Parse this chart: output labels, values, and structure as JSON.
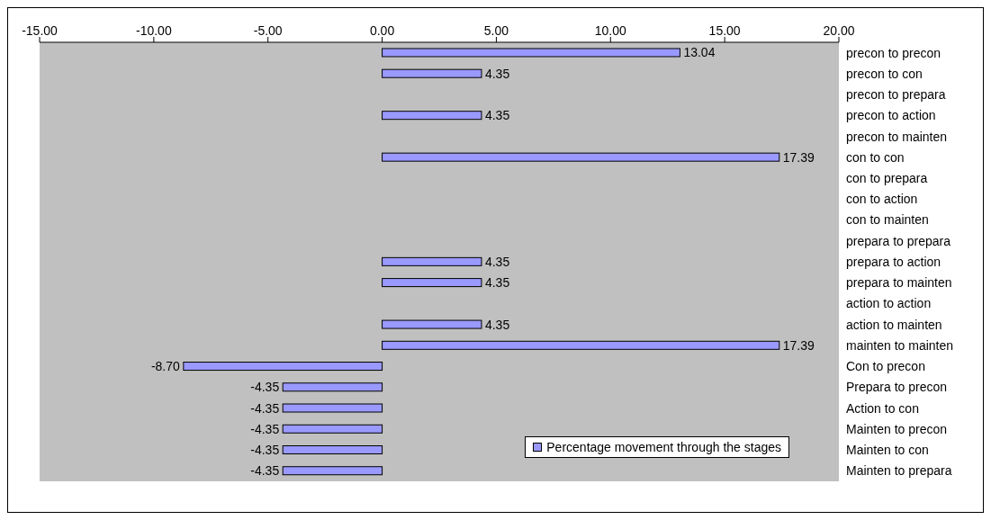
{
  "chart_data": {
    "type": "bar",
    "orientation": "horizontal",
    "categories": [
      "precon to precon",
      "precon to con",
      "precon to prepara",
      "precon to action",
      "precon to mainten",
      "con to con",
      "con to prepara",
      "con to action",
      "con to mainten",
      "prepara to prepara",
      "prepara to action",
      "prepara to mainten",
      "action to action",
      "action to mainten",
      "mainten to mainten",
      "Con to precon",
      "Prepara to precon",
      "Action to con",
      "Mainten to precon",
      "Mainten to con",
      "Mainten to prepara"
    ],
    "series": [
      {
        "name": "Percentage movement through the stages",
        "color": "#9999ff",
        "values": [
          13.04,
          4.35,
          null,
          4.35,
          null,
          17.39,
          null,
          null,
          null,
          null,
          4.35,
          4.35,
          null,
          4.35,
          17.39,
          -8.7,
          -4.35,
          -4.35,
          -4.35,
          -4.35,
          -4.35
        ],
        "value_labels": [
          "13.04",
          "4.35",
          null,
          "4.35",
          null,
          "17.39",
          null,
          null,
          null,
          null,
          "4.35",
          "4.35",
          null,
          "4.35",
          "17.39",
          "-8.70",
          "-4.35",
          "-4.35",
          "-4.35",
          "-4.35",
          "-4.35"
        ]
      }
    ],
    "xlim": [
      -15,
      20
    ],
    "xticks": [
      {
        "value": -15,
        "label": "-15.00"
      },
      {
        "value": -10,
        "label": "-10.00"
      },
      {
        "value": -5,
        "label": "-5.00"
      },
      {
        "value": 0,
        "label": "0.00"
      },
      {
        "value": 5,
        "label": "5.00"
      },
      {
        "value": 10,
        "label": "10.00"
      },
      {
        "value": 15,
        "label": "15.00"
      },
      {
        "value": 20,
        "label": "20.00"
      }
    ],
    "grid": false,
    "legend": "bottom right"
  }
}
